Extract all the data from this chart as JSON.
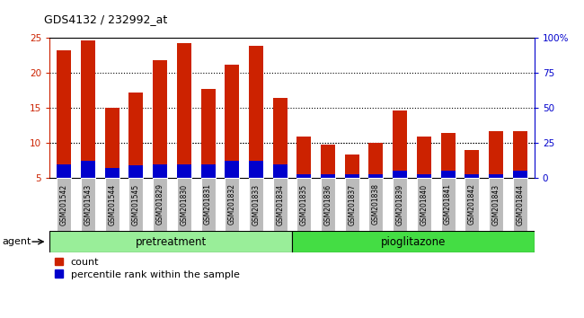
{
  "title": "GDS4132 / 232992_at",
  "categories": [
    "GSM201542",
    "GSM201543",
    "GSM201544",
    "GSM201545",
    "GSM201829",
    "GSM201830",
    "GSM201831",
    "GSM201832",
    "GSM201833",
    "GSM201834",
    "GSM201835",
    "GSM201836",
    "GSM201837",
    "GSM201838",
    "GSM201839",
    "GSM201840",
    "GSM201841",
    "GSM201842",
    "GSM201843",
    "GSM201844"
  ],
  "count_values": [
    23.3,
    24.7,
    15.0,
    17.2,
    21.9,
    24.3,
    17.8,
    21.2,
    23.9,
    16.5,
    10.9,
    9.8,
    8.4,
    10.1,
    14.6,
    11.0,
    11.4,
    9.0,
    11.7,
    11.7
  ],
  "percentile_values": [
    7.0,
    7.5,
    6.5,
    6.8,
    7.0,
    7.0,
    7.0,
    7.5,
    7.5,
    7.0,
    5.5,
    5.5,
    5.5,
    5.5,
    6.0,
    5.5,
    6.0,
    5.5,
    5.5,
    6.0
  ],
  "bar_bottom": 5.0,
  "count_color": "#cc2200",
  "percentile_color": "#0000cc",
  "ylim_left": [
    5,
    25
  ],
  "ylim_right": [
    0,
    100
  ],
  "yticks_left": [
    5,
    10,
    15,
    20,
    25
  ],
  "yticks_right": [
    0,
    25,
    50,
    75,
    100
  ],
  "ytick_labels_right": [
    "0",
    "25",
    "50",
    "75",
    "100%"
  ],
  "grid_values": [
    10,
    15,
    20
  ],
  "pretreatment_label": "pretreatment",
  "pioglitazone_label": "pioglitazone",
  "pretreatment_count": 10,
  "agent_label": "agent",
  "legend_count_label": "count",
  "legend_percentile_label": "percentile rank within the sample",
  "bg_color_pretreatment": "#99ee99",
  "bg_color_pioglitazone": "#44dd44",
  "xticklabel_bg": "#bbbbbb",
  "left_tick_color": "#cc2200",
  "right_tick_color": "#0000cc"
}
